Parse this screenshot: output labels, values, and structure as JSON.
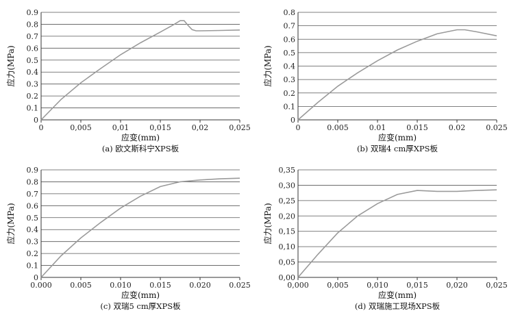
{
  "chart_data": [
    {
      "type": "line",
      "caption": "(a) 欧文斯科宁XPS板",
      "xlabel": "应变(mm)",
      "ylabel": "应力(MPa)",
      "xlim": [
        0,
        0.025
      ],
      "ylim": [
        0,
        0.9
      ],
      "xticks": [
        "0",
        "0,005",
        "0,01",
        "0,015",
        "0,02",
        "0,025"
      ],
      "yticks": [
        "0",
        "0.1",
        "0.2",
        "0.3",
        "0.4",
        "0.5",
        "0.6",
        "0.7",
        "0.8",
        "0.9"
      ],
      "grid": true,
      "series": [
        {
          "x": [
            0,
            0.0025,
            0.005,
            0.0075,
            0.01,
            0.0125,
            0.015,
            0.0165,
            0.0175,
            0.018,
            0.0185,
            0.019,
            0.0195,
            0.02,
            0.0225,
            0.025
          ],
          "y": [
            0,
            0.17,
            0.31,
            0.43,
            0.545,
            0.645,
            0.735,
            0.79,
            0.83,
            0.83,
            0.79,
            0.755,
            0.745,
            0.745,
            0.748,
            0.752
          ]
        }
      ]
    },
    {
      "type": "line",
      "caption": "(b) 双瑞4 cm厚XPS板",
      "xlabel": "应变(mm)",
      "ylabel": "应力(MPa)",
      "xlim": [
        0,
        0.025
      ],
      "ylim": [
        0,
        0.8
      ],
      "xticks": [
        "0",
        "0.005",
        "0.01",
        "0.015",
        "0.02",
        "0.025"
      ],
      "yticks": [
        "0",
        "0.1",
        "0.2",
        "0.3",
        "0.4",
        "0.5",
        "0.6",
        "0.7",
        "0.8"
      ],
      "grid": true,
      "series": [
        {
          "x": [
            0,
            0.0025,
            0.005,
            0.0075,
            0.01,
            0.0125,
            0.015,
            0.0175,
            0.02,
            0.021,
            0.0225,
            0.025
          ],
          "y": [
            0,
            0.13,
            0.25,
            0.35,
            0.44,
            0.52,
            0.585,
            0.64,
            0.67,
            0.67,
            0.655,
            0.625
          ]
        }
      ]
    },
    {
      "type": "line",
      "caption": "(c) 双瑞5 cm厚XPS板",
      "xlabel": "应变(mm)",
      "ylabel": "应力(MPa)",
      "xlim": [
        0,
        0.025
      ],
      "ylim": [
        0,
        0.9
      ],
      "xticks": [
        "0.000",
        "0.005",
        "0.010",
        "0.015",
        "0.020",
        "0.025"
      ],
      "yticks": [
        "0",
        "0.1",
        "0.2",
        "0.3",
        "0.4",
        "0.5",
        "0.6",
        "0.7",
        "0.8",
        "0.9"
      ],
      "grid": true,
      "series": [
        {
          "x": [
            0,
            0.0025,
            0.005,
            0.0075,
            0.01,
            0.0125,
            0.015,
            0.0175,
            0.02,
            0.0225,
            0.025
          ],
          "y": [
            0,
            0.18,
            0.33,
            0.46,
            0.58,
            0.68,
            0.76,
            0.8,
            0.815,
            0.825,
            0.83
          ]
        }
      ]
    },
    {
      "type": "line",
      "caption": "(d) 双瑞施工现场XPS板",
      "xlabel": "应变(mm)",
      "ylabel": "应力(MPa)",
      "xlim": [
        0,
        0.025
      ],
      "ylim": [
        0,
        0.35
      ],
      "xticks": [
        "0,000",
        "0,005",
        "0,010",
        "0,015",
        "0,020",
        "0,025"
      ],
      "yticks": [
        "0,00",
        "0,05",
        "0,10",
        "0,15",
        "0,20",
        "0,25",
        "0,30",
        "0,35"
      ],
      "grid": true,
      "series": [
        {
          "x": [
            0,
            0.0025,
            0.005,
            0.0075,
            0.01,
            0.0125,
            0.015,
            0.0175,
            0.02,
            0.0225,
            0.025
          ],
          "y": [
            0,
            0.075,
            0.145,
            0.2,
            0.24,
            0.27,
            0.283,
            0.28,
            0.28,
            0.283,
            0.285
          ]
        }
      ]
    }
  ]
}
